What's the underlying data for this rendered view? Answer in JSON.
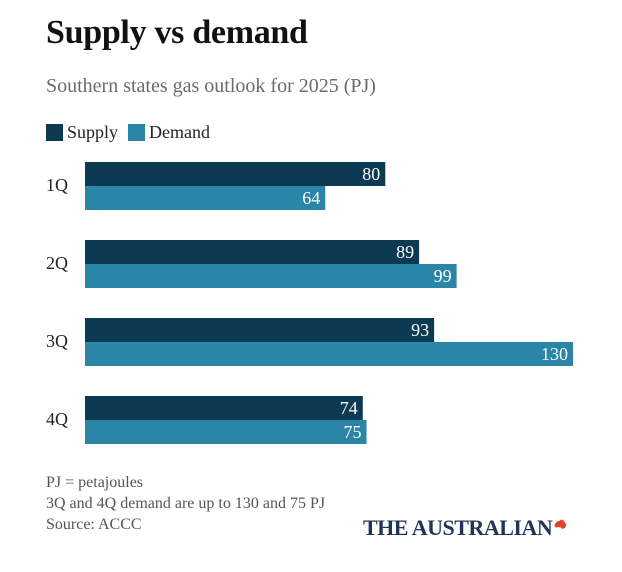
{
  "title": "Supply vs demand",
  "subtitle": "Southern states gas outlook for 2025 (PJ)",
  "notes": {
    "line1": "PJ = petajoules",
    "line2": "3Q and 4Q demand are up to 130 and 75 PJ",
    "source": "Source: ACCC"
  },
  "brand": {
    "name": "THE AUSTRALIAN",
    "icon": "australia-map-icon",
    "icon_color": "#e4402f"
  },
  "colors": {
    "supply": "#0c3a52",
    "demand": "#2b85a6"
  },
  "chart_data": {
    "type": "bar",
    "orientation": "horizontal",
    "categories": [
      "1Q",
      "2Q",
      "3Q",
      "4Q"
    ],
    "series": [
      {
        "name": "Supply",
        "values": [
          80,
          89,
          93,
          74
        ]
      },
      {
        "name": "Demand",
        "values": [
          64,
          99,
          130,
          75
        ]
      }
    ],
    "xlim": [
      0,
      130
    ],
    "grid": false,
    "legend": "top-left",
    "data_labels": true
  }
}
